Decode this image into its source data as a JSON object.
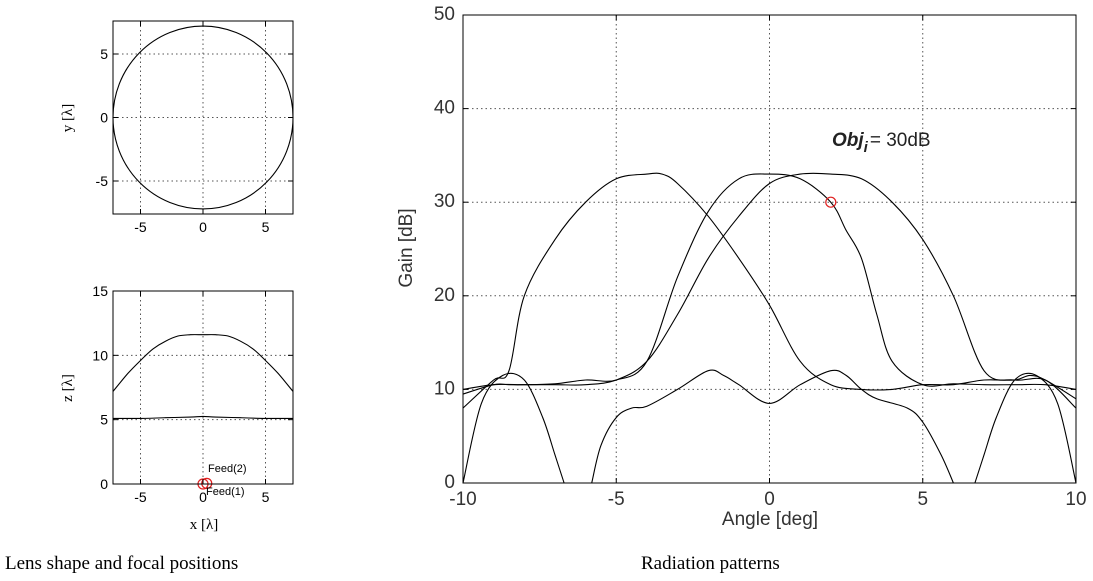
{
  "chart_data": [
    {
      "type": "line",
      "title": "",
      "xlabel": "x [λ]",
      "ylabel": "y [λ]",
      "xlim": [
        -7.2,
        7.2
      ],
      "ylim": [
        -7.6,
        7.6
      ],
      "xticks": [
        "-5",
        "0",
        "5"
      ],
      "yticks": [
        "5",
        "0",
        "-5"
      ],
      "grid": true,
      "series": [
        {
          "shape": "circle",
          "center": [
            0,
            0
          ],
          "radius": 7.2
        }
      ]
    },
    {
      "type": "line",
      "title": "",
      "xlabel": "x [λ]",
      "ylabel": "z [λ]",
      "xlim": [
        -7.2,
        7.2
      ],
      "ylim": [
        0,
        15
      ],
      "xticks": [
        "-5",
        "0",
        "5"
      ],
      "yticks": [
        "15",
        "10",
        "5",
        "0"
      ],
      "grid": true,
      "series": [
        {
          "x": [
            -7.2,
            -6,
            -5,
            -4,
            -3,
            -2,
            -1,
            0,
            1,
            2,
            3,
            4,
            5,
            6,
            7.2
          ],
          "y": [
            7.2,
            8.6,
            9.6,
            10.5,
            11.1,
            11.5,
            11.6,
            11.6,
            11.6,
            11.5,
            11.1,
            10.5,
            9.6,
            8.6,
            7.2
          ]
        },
        {
          "x": [
            -7.2,
            -5,
            -3,
            -1,
            0,
            1,
            3,
            5,
            7.2
          ],
          "y": [
            5.1,
            5.1,
            5.15,
            5.2,
            5.25,
            5.2,
            5.15,
            5.1,
            5.1
          ]
        }
      ],
      "annotations": [
        {
          "text": "Feed(2)",
          "x": 0.3,
          "y": 0.05
        },
        {
          "text": "Feed(1)",
          "x": 0,
          "y": 0
        }
      ],
      "markers": [
        {
          "x": 0,
          "y": 0
        },
        {
          "x": 0.3,
          "y": 0.05
        }
      ]
    },
    {
      "type": "line",
      "title": "",
      "xlabel": "Angle [deg]",
      "ylabel": "Gain [dB]",
      "xlim": [
        -10,
        10
      ],
      "ylim": [
        0,
        50
      ],
      "xticks": [
        "-10",
        "-5",
        "0",
        "5",
        "10"
      ],
      "yticks": [
        "50",
        "40",
        "30",
        "20",
        "10",
        "0"
      ],
      "grid": true,
      "annotation": {
        "prefix": "Obj",
        "subscript": "i",
        "suffix": "= 30dB",
        "x": 2,
        "y": 30
      },
      "marker": {
        "x": 2,
        "y": 30
      },
      "series": [
        {
          "x": [
            -10,
            -9,
            -8.5,
            -8,
            -7,
            -6,
            -5,
            -4,
            -3,
            -2,
            -1,
            0,
            1,
            2,
            2.5,
            3,
            3.5,
            4,
            5,
            6,
            7,
            8,
            9,
            10
          ],
          "y": [
            9.5,
            10.5,
            10.5,
            10.5,
            10.6,
            11,
            11,
            13,
            22,
            29,
            32.5,
            33,
            32.5,
            30,
            27,
            24,
            18,
            13,
            10.5,
            10.6,
            10.5,
            10.5,
            10.5,
            10
          ]
        },
        {
          "x": [
            -10,
            -9,
            -8.5,
            -8,
            -7,
            -6,
            -5,
            -4,
            -3.5,
            -3,
            -2,
            -1,
            0,
            1,
            2,
            3,
            4,
            5,
            6,
            7,
            8,
            8.5,
            9,
            10
          ],
          "y": [
            8,
            11,
            12,
            20,
            26,
            30,
            32.5,
            33,
            33,
            32,
            28.5,
            24,
            19,
            13,
            10.5,
            10,
            10,
            10.5,
            10.5,
            11,
            11,
            11.5,
            11,
            9
          ]
        },
        {
          "x": [
            -10,
            -9,
            -8,
            -7,
            -6,
            -5,
            -4,
            -3,
            -2,
            -1,
            0,
            1,
            2,
            3,
            4,
            5,
            6,
            7,
            8,
            9,
            10
          ],
          "y": [
            10,
            10.5,
            10.5,
            10.5,
            10.5,
            11,
            13,
            18,
            24,
            28.5,
            32,
            33,
            33,
            32.5,
            30,
            26,
            20,
            12,
            11,
            11,
            8
          ]
        },
        {
          "x": [
            -10,
            -9.4,
            -8.7,
            -8,
            -7.4,
            -7,
            -6.7
          ],
          "y": [
            0,
            8.5,
            11.5,
            11,
            7,
            3,
            0
          ]
        },
        {
          "x": [
            -5.8,
            -5.5,
            -5,
            -4.5,
            -4,
            -3,
            -2,
            -1.5,
            -1,
            0,
            1,
            2,
            2.5,
            3,
            3.5,
            4.5,
            5,
            5.6,
            6
          ],
          "y": [
            0,
            4,
            7,
            8,
            8.2,
            10,
            12,
            11.5,
            10.5,
            8.5,
            10.5,
            12,
            11.5,
            10,
            9,
            8,
            6.5,
            3,
            0
          ]
        },
        {
          "x": [
            6.7,
            7,
            7.4,
            8,
            8.7,
            9.4,
            10
          ],
          "y": [
            0,
            3,
            7,
            11,
            11.5,
            8.5,
            0
          ]
        }
      ]
    }
  ],
  "captions": {
    "left": "Lens shape and focal positions",
    "right": "Radiation patterns"
  }
}
